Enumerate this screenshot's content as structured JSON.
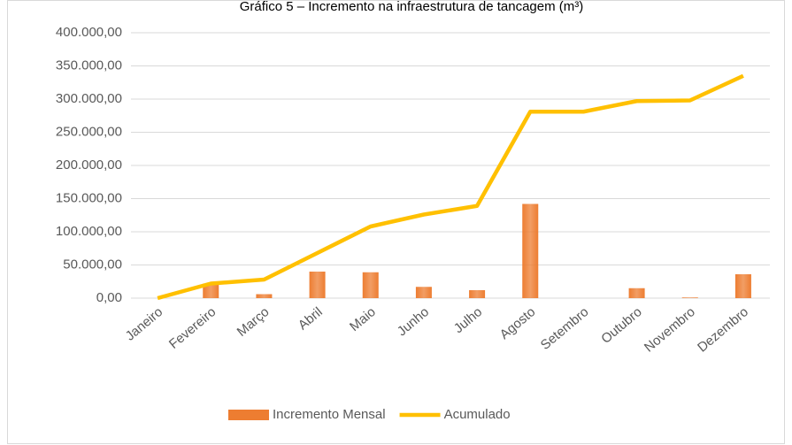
{
  "chart_data": {
    "type": "bar_line",
    "title": "Gráfico 5 – Incremento na infraestrutura de tancagem (m³)",
    "categories": [
      "Janeiro",
      "Fevereiro",
      "Março",
      "Abril",
      "Maio",
      "Junho",
      "Julho",
      "Agosto",
      "Setembro",
      "Outubro",
      "Novembro",
      "Dezembro"
    ],
    "series": [
      {
        "name": "Incremento Mensal",
        "kind": "bar",
        "color": "#ed7d31",
        "values": [
          0,
          22000,
          6000,
          40000,
          39000,
          17000,
          12000,
          142000,
          0,
          15000,
          1000,
          36000
        ]
      },
      {
        "name": "Acumulado",
        "kind": "line",
        "color": "#ffc000",
        "values": [
          0,
          22000,
          28000,
          68000,
          108000,
          126000,
          139000,
          281000,
          281000,
          297000,
          298000,
          335000
        ]
      }
    ],
    "ylim": [
      0,
      400000
    ],
    "yticks": [
      {
        "value": 0,
        "label": "0,00"
      },
      {
        "value": 50000,
        "label": "50.000,00"
      },
      {
        "value": 100000,
        "label": "100.000,00"
      },
      {
        "value": 150000,
        "label": "150.000,00"
      },
      {
        "value": 200000,
        "label": "200.000,00"
      },
      {
        "value": 250000,
        "label": "250.000,00"
      },
      {
        "value": 300000,
        "label": "300.000,00"
      },
      {
        "value": 350000,
        "label": "350.000,00"
      },
      {
        "value": 400000,
        "label": "400.000,00"
      }
    ],
    "grid": true,
    "legend": "bottom"
  }
}
